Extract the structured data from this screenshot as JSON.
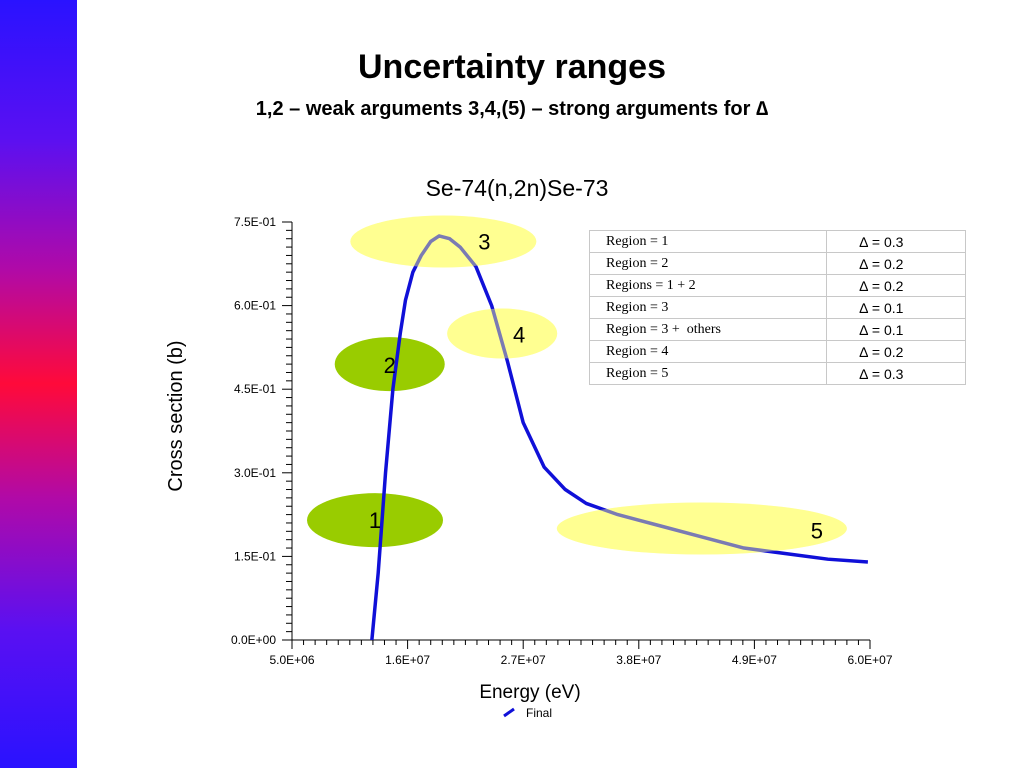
{
  "slide": {
    "title": "Uncertainty ranges",
    "subtitle": "1,2 – weak arguments 3,4,(5) – strong arguments for ∆"
  },
  "colors": {
    "curve": "#1010d8",
    "ellipse_yellow": "#ffff88",
    "ellipse_green": "#99cc00",
    "sidebar_top": "#2a12ff",
    "sidebar_mid": "#ff0a3a"
  },
  "chart_data": {
    "type": "line",
    "title": "Se-74(n,2n)Se-73",
    "xlabel": "Energy (eV)",
    "ylabel": "Cross section (b)",
    "xlim": [
      5000000,
      60000000
    ],
    "ylim": [
      0,
      0.75
    ],
    "x_ticks": [
      "5.0E+06",
      "1.6E+07",
      "2.7E+07",
      "3.8E+07",
      "4.9E+07",
      "6.0E+07"
    ],
    "y_ticks": [
      "0.0E+00",
      "1.5E-01",
      "3.0E-01",
      "4.5E-01",
      "6.0E-01",
      "7.5E-01"
    ],
    "legend": "bottom-center",
    "series": [
      {
        "name": "Final",
        "x": [
          12600000,
          13200000,
          13900000,
          14600000,
          15300000,
          15800000,
          16500000,
          17300000,
          18200000,
          19000000,
          20000000,
          21000000,
          22500000,
          24000000,
          25500000,
          27000000,
          29000000,
          31000000,
          33000000,
          36000000,
          40000000,
          44000000,
          48000000,
          52000000,
          56000000,
          59800000
        ],
        "y": [
          0.0,
          0.12,
          0.3,
          0.45,
          0.55,
          0.61,
          0.66,
          0.69,
          0.715,
          0.725,
          0.72,
          0.705,
          0.67,
          0.6,
          0.5,
          0.39,
          0.31,
          0.27,
          0.245,
          0.225,
          0.205,
          0.185,
          0.165,
          0.155,
          0.145,
          0.14
        ]
      }
    ],
    "regions": [
      {
        "label": "1",
        "cx": 12900000,
        "cy": 0.215
      },
      {
        "label": "2",
        "cx": 14300000,
        "cy": 0.495
      },
      {
        "label": "3",
        "cx": 19400000,
        "cy": 0.715
      },
      {
        "label": "4",
        "cx": 25000000,
        "cy": 0.55
      },
      {
        "label": "5",
        "cx": 44000000,
        "cy": 0.2
      }
    ]
  },
  "table": {
    "rows": [
      [
        "Region = 1",
        "∆ = 0.3"
      ],
      [
        "Region = 2",
        "∆ = 0.2"
      ],
      [
        "Regions = 1 + 2",
        "∆ = 0.2"
      ],
      [
        "Region = 3",
        "∆ = 0.1"
      ],
      [
        "Region = 3 +  others",
        "∆ = 0.1"
      ],
      [
        "Region = 4",
        "∆ = 0.2"
      ],
      [
        "Region = 5",
        "∆ = 0.3"
      ]
    ]
  }
}
